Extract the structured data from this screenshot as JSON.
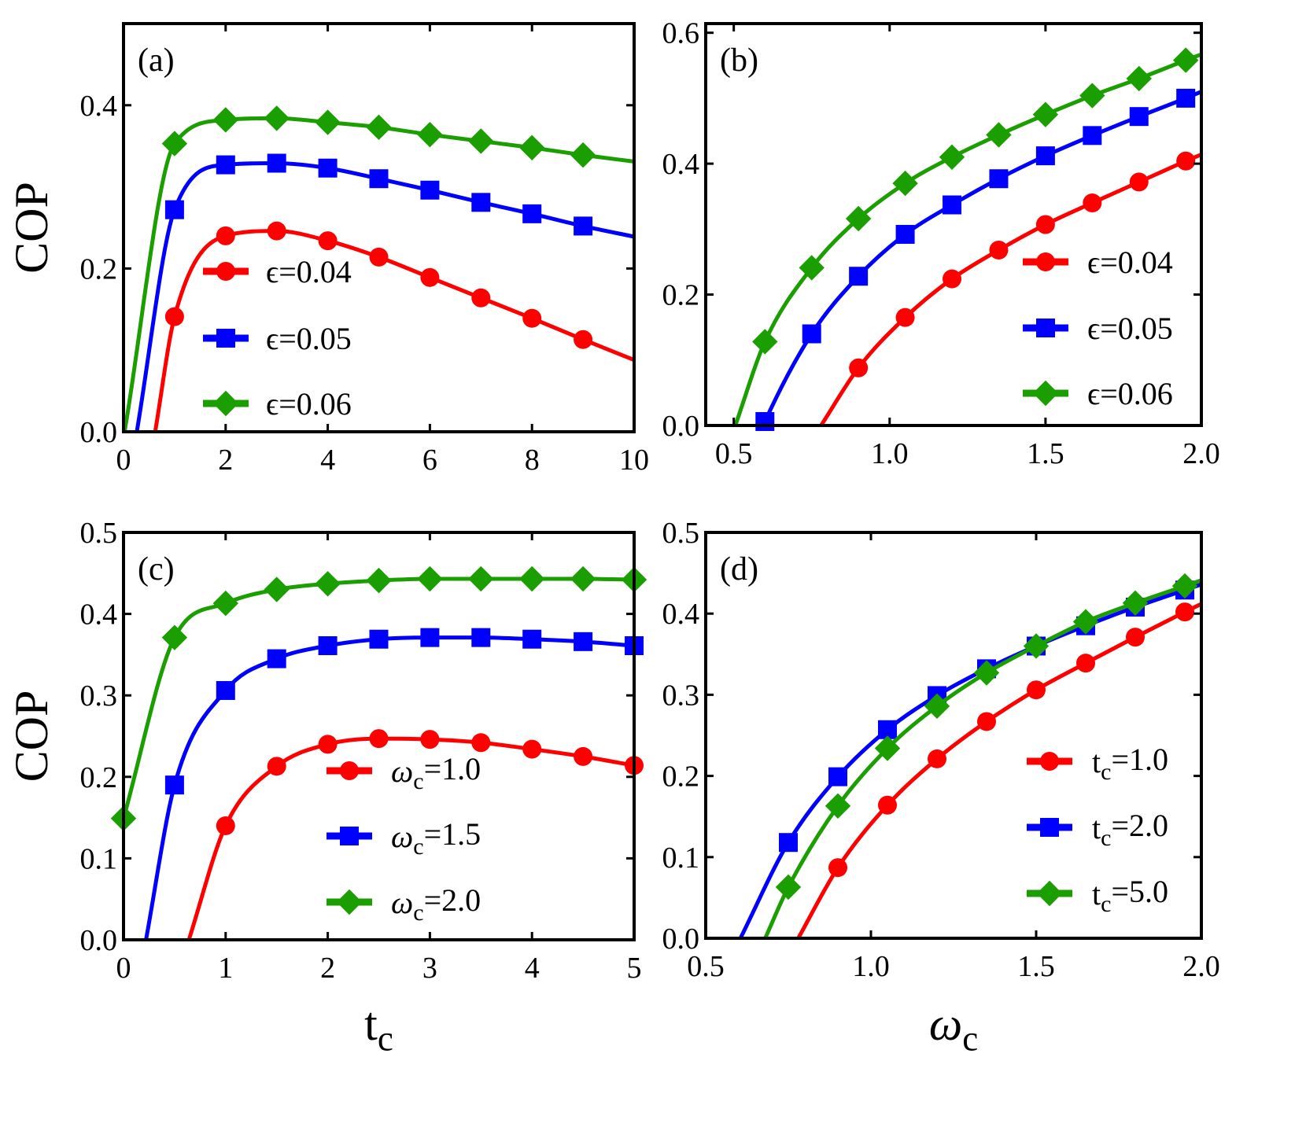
{
  "chart_data": [
    {
      "panel": "(a)",
      "type": "line",
      "xlabel": "",
      "ylabel": "COP",
      "xlim": [
        0,
        10
      ],
      "ylim": [
        0,
        0.5
      ],
      "xticks": [
        0,
        2,
        4,
        6,
        8,
        10
      ],
      "xticklabels": [
        "0",
        "2",
        "4",
        "6",
        "8",
        "10"
      ],
      "yticks": [
        0,
        0.2,
        0.4
      ],
      "yticklabels": [
        "0.0",
        "0.2",
        "0.4"
      ],
      "legend": "center-left",
      "series": [
        {
          "name": "ϵ=0.04",
          "color": "#ff0000",
          "marker": "circle",
          "x0": 0.62,
          "x": [
            1,
            2,
            3,
            4,
            5,
            6,
            7,
            8,
            9
          ],
          "y": [
            0.141,
            0.24,
            0.246,
            0.234,
            0.214,
            0.189,
            0.164,
            0.139,
            0.113
          ],
          "end": [
            10,
            0.088
          ]
        },
        {
          "name": "ϵ=0.05",
          "color": "#0000ff",
          "marker": "square",
          "x0": 0.26,
          "x": [
            1,
            2,
            3,
            4,
            5,
            6,
            7,
            8,
            9
          ],
          "y": [
            0.272,
            0.327,
            0.329,
            0.323,
            0.31,
            0.296,
            0.281,
            0.267,
            0.252
          ],
          "end": [
            10,
            0.239
          ]
        },
        {
          "name": "ϵ=0.06",
          "color": "#1a9e00",
          "marker": "diamond",
          "x0": 0.02,
          "x": [
            1,
            2,
            3,
            4,
            5,
            6,
            7,
            8,
            9
          ],
          "y": [
            0.353,
            0.382,
            0.384,
            0.379,
            0.373,
            0.364,
            0.356,
            0.348,
            0.339
          ],
          "end": [
            10,
            0.331
          ]
        }
      ]
    },
    {
      "panel": "(b)",
      "type": "line",
      "xlabel": "",
      "ylabel": "",
      "xlim": [
        0.41,
        2.0
      ],
      "ylim": [
        0,
        0.614
      ],
      "xticks": [
        0.5,
        1.0,
        1.5,
        2.0
      ],
      "xticklabels": [
        "0.5",
        "1.0",
        "1.5",
        "2.0"
      ],
      "yticks": [
        0,
        0.2,
        0.4,
        0.6
      ],
      "yticklabels": [
        "0.0",
        "0.2",
        "0.4",
        "0.6"
      ],
      "legend": "center-right",
      "series": [
        {
          "name": "ϵ=0.04",
          "color": "#ff0000",
          "marker": "circle",
          "x0": 0.78,
          "x": [
            0.9,
            1.05,
            1.2,
            1.35,
            1.5,
            1.65,
            1.8,
            1.95
          ],
          "y": [
            0.088,
            0.165,
            0.224,
            0.268,
            0.307,
            0.34,
            0.372,
            0.404
          ],
          "end": [
            2.0,
            0.414
          ]
        },
        {
          "name": "ϵ=0.05",
          "color": "#0000ff",
          "marker": "square",
          "x0": 0.595,
          "x": [
            0.6,
            0.75,
            0.9,
            1.05,
            1.2,
            1.35,
            1.5,
            1.65,
            1.8,
            1.95
          ],
          "y": [
            0.006,
            0.14,
            0.228,
            0.292,
            0.337,
            0.377,
            0.412,
            0.443,
            0.472,
            0.5
          ],
          "end": [
            2.0,
            0.51
          ]
        },
        {
          "name": "ϵ=0.06",
          "color": "#1a9e00",
          "marker": "diamond",
          "x0": 0.505,
          "x": [
            0.6,
            0.75,
            0.9,
            1.05,
            1.2,
            1.35,
            1.5,
            1.65,
            1.8,
            1.95
          ],
          "y": [
            0.128,
            0.241,
            0.316,
            0.37,
            0.41,
            0.444,
            0.475,
            0.504,
            0.53,
            0.558
          ],
          "end": [
            2.0,
            0.567
          ]
        }
      ]
    },
    {
      "panel": "(c)",
      "type": "line",
      "xlabel": "tc",
      "ylabel": "COP",
      "xlim": [
        0,
        5
      ],
      "ylim": [
        0,
        0.5
      ],
      "xticks": [
        0,
        1,
        2,
        3,
        4,
        5
      ],
      "xticklabels": [
        "0",
        "1",
        "2",
        "3",
        "4",
        "5"
      ],
      "yticks": [
        0,
        0.1,
        0.2,
        0.3,
        0.4,
        0.5
      ],
      "yticklabels": [
        "0.0",
        "0.1",
        "0.2",
        "0.3",
        "0.4",
        "0.5"
      ],
      "legend": "center",
      "series": [
        {
          "name": "ωc=1.0",
          "color": "#ff0000",
          "marker": "circle",
          "x0": 0.64,
          "x": [
            1,
            1.5,
            2,
            2.5,
            3,
            3.5,
            4,
            4.5,
            5
          ],
          "y": [
            0.14,
            0.213,
            0.24,
            0.247,
            0.246,
            0.242,
            0.234,
            0.225,
            0.214
          ]
        },
        {
          "name": "ωc=1.5",
          "color": "#0000ff",
          "marker": "square",
          "x0": 0.22,
          "x": [
            0.5,
            1,
            1.5,
            2,
            2.5,
            3,
            3.5,
            4,
            4.5,
            5
          ],
          "y": [
            0.19,
            0.306,
            0.345,
            0.361,
            0.369,
            0.371,
            0.371,
            0.369,
            0.366,
            0.361
          ]
        },
        {
          "name": "ωc=2.0",
          "color": "#1a9e00",
          "marker": "diamond",
          "x": [
            0,
            0.5,
            1,
            1.5,
            2,
            2.5,
            3,
            3.5,
            4,
            4.5,
            5
          ],
          "y": [
            0.149,
            0.371,
            0.413,
            0.43,
            0.437,
            0.441,
            0.443,
            0.443,
            0.443,
            0.443,
            0.442
          ]
        }
      ]
    },
    {
      "panel": "(d)",
      "type": "line",
      "xlabel": "ωc",
      "ylabel": "",
      "xlim": [
        0.5,
        2.0
      ],
      "ylim": [
        0,
        0.5
      ],
      "xticks": [
        0.5,
        1.0,
        1.5,
        2.0
      ],
      "xticklabels": [
        "0.5",
        "1.0",
        "1.5",
        "2.0"
      ],
      "yticks": [
        0,
        0.1,
        0.2,
        0.3,
        0.4,
        0.5
      ],
      "yticklabels": [
        "0.0",
        "0.1",
        "0.2",
        "0.3",
        "0.4",
        "0.5"
      ],
      "legend": "center-right",
      "series": [
        {
          "name": "tc=1.0",
          "color": "#ff0000",
          "marker": "circle",
          "x0": 0.78,
          "x": [
            0.9,
            1.05,
            1.2,
            1.35,
            1.5,
            1.65,
            1.8,
            1.95
          ],
          "y": [
            0.087,
            0.164,
            0.221,
            0.267,
            0.306,
            0.339,
            0.371,
            0.402
          ],
          "end": [
            2.0,
            0.412
          ]
        },
        {
          "name": "tc=2.0",
          "color": "#0000ff",
          "marker": "square",
          "x0": 0.605,
          "x": [
            0.75,
            0.9,
            1.05,
            1.2,
            1.35,
            1.5,
            1.65,
            1.8,
            1.95
          ],
          "y": [
            0.118,
            0.199,
            0.257,
            0.299,
            0.332,
            0.36,
            0.385,
            0.408,
            0.429
          ],
          "end": [
            2.0,
            0.436
          ]
        },
        {
          "name": "tc=5.0",
          "color": "#1a9e00",
          "marker": "diamond",
          "x0": 0.68,
          "x": [
            0.75,
            0.9,
            1.05,
            1.2,
            1.35,
            1.5,
            1.65,
            1.8,
            1.95
          ],
          "y": [
            0.063,
            0.163,
            0.234,
            0.286,
            0.327,
            0.36,
            0.39,
            0.413,
            0.434
          ],
          "end": [
            2.0,
            0.441
          ]
        }
      ]
    }
  ]
}
